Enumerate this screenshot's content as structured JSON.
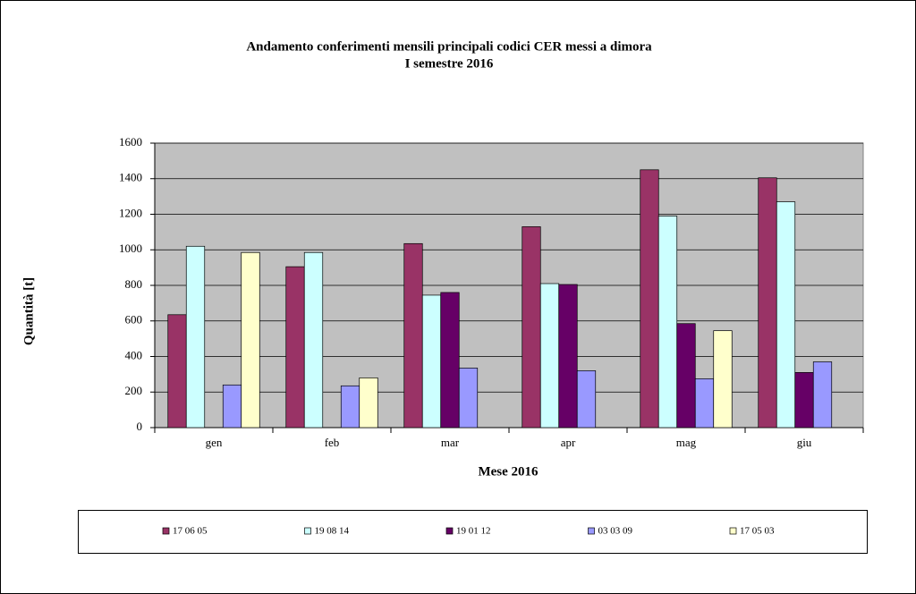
{
  "chart_data": {
    "type": "bar",
    "title": "Andamento conferimenti mensili principali codici CER messi a dimora",
    "subtitle": "I semestre 2016",
    "x_label": "Mese 2016",
    "y_label": "Quantità [t]",
    "categories": [
      "gen",
      "feb",
      "mar",
      "apr",
      "mag",
      "giu"
    ],
    "series": [
      {
        "name": "17 06 05",
        "color": "#993366",
        "values": [
          635,
          905,
          1035,
          1130,
          1450,
          1405
        ]
      },
      {
        "name": "19 08 14",
        "color": "#ccffff",
        "values": [
          1020,
          985,
          745,
          810,
          1190,
          1270
        ]
      },
      {
        "name": "19 01 12",
        "color": "#660066",
        "values": [
          null,
          null,
          760,
          805,
          585,
          310
        ]
      },
      {
        "name": "03 03 09",
        "color": "#9999ff",
        "values": [
          240,
          235,
          335,
          320,
          275,
          370
        ]
      },
      {
        "name": "17 05 03",
        "color": "#ffffcc",
        "values": [
          985,
          280,
          null,
          null,
          545,
          null
        ]
      }
    ],
    "ylim": [
      0,
      1600
    ],
    "yticks": [
      0,
      200,
      400,
      600,
      800,
      1000,
      1200,
      1400,
      1600
    ],
    "grid": true,
    "legend": "bottom"
  }
}
